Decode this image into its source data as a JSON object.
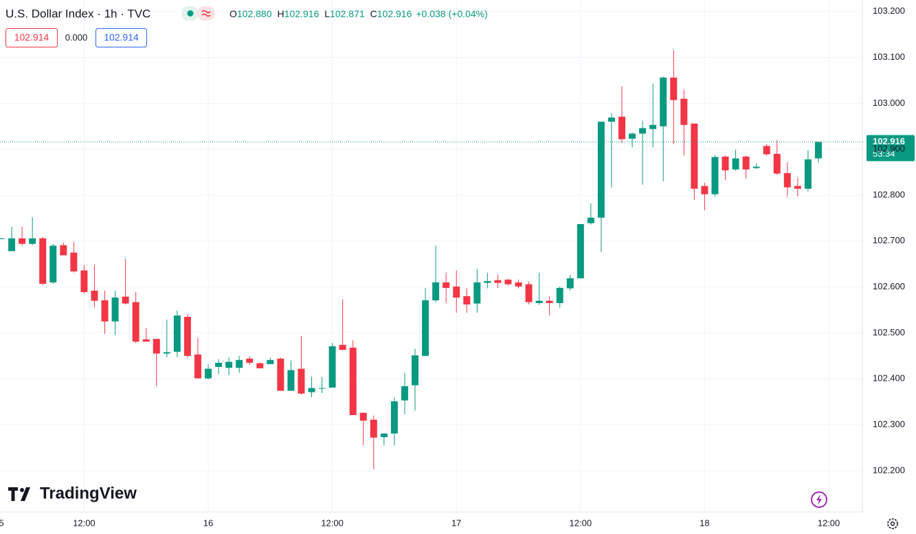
{
  "chart_data": {
    "type": "candlestick",
    "legend": {
      "title": "U.S. Dollar Index · 1h · TVC",
      "open_label": "O",
      "open": "102.880",
      "high_label": "H",
      "high": "102.916",
      "low_label": "L",
      "low": "102.871",
      "close_label": "C",
      "close": "102.916",
      "change": "+0.038 (+0.04%)"
    },
    "badges": [
      "102.914",
      "0.000",
      "102.914"
    ],
    "price_tag": {
      "price": "102.916",
      "countdown": "53:34"
    },
    "watermark": "TradingView",
    "up_color": "#089981",
    "down_color": "#f23645",
    "categories": [
      "5",
      null,
      null,
      null,
      null,
      null,
      null,
      null,
      "12:00",
      null,
      null,
      null,
      null,
      null,
      null,
      null,
      null,
      null,
      null,
      null,
      "16",
      null,
      null,
      null,
      null,
      null,
      null,
      null,
      null,
      null,
      null,
      null,
      "12:00",
      null,
      null,
      null,
      null,
      null,
      null,
      null,
      null,
      null,
      null,
      null,
      "17",
      null,
      null,
      null,
      null,
      null,
      null,
      null,
      null,
      null,
      null,
      null,
      "12:00",
      null,
      null,
      null,
      null,
      null,
      null,
      null,
      null,
      null,
      null,
      null,
      "18",
      null,
      null,
      null,
      null,
      null,
      null,
      null,
      null,
      null,
      null,
      null,
      "12:00"
    ],
    "open": [
      102.706,
      102.678,
      102.706,
      102.694,
      102.706,
      102.61,
      102.691,
      102.675,
      102.636,
      102.592,
      102.571,
      102.525,
      102.579,
      102.567,
      102.486,
      102.487,
      102.455,
      102.459,
      102.535,
      102.453,
      102.401,
      102.426,
      102.424,
      102.424,
      102.444,
      102.434,
      102.432,
      102.444,
      102.374,
      102.422,
      102.371,
      102.379,
      102.381,
      102.474,
      102.468,
      102.326,
      102.311,
      102.273,
      102.281,
      102.353,
      102.386,
      102.45,
      102.571,
      102.61,
      102.601,
      102.58,
      102.564,
      102.609,
      102.615,
      102.616,
      102.61,
      102.606,
      102.565,
      102.57,
      102.565,
      102.597,
      102.619,
      102.739,
      102.751,
      102.96,
      102.971,
      102.923,
      102.934,
      102.944,
      102.95,
      103.056,
      103.01,
      102.956,
      102.82,
      102.802,
      102.884,
      102.856,
      102.884,
      102.859,
      102.907,
      102.89,
      102.848,
      102.82,
      102.814,
      102.88,
      null
    ],
    "high": [
      102.707,
      102.731,
      102.731,
      102.752,
      102.709,
      102.694,
      102.697,
      102.698,
      102.648,
      102.648,
      102.592,
      102.592,
      102.661,
      102.589,
      102.511,
      102.487,
      102.529,
      102.549,
      102.541,
      102.489,
      102.432,
      102.443,
      102.447,
      102.45,
      102.449,
      102.435,
      102.446,
      102.446,
      102.44,
      102.493,
      102.404,
      102.404,
      102.478,
      102.573,
      102.484,
      102.327,
      102.32,
      102.282,
      102.36,
      102.413,
      102.465,
      102.598,
      102.69,
      102.631,
      102.636,
      102.597,
      102.639,
      102.631,
      102.627,
      102.618,
      102.616,
      102.612,
      102.631,
      102.58,
      102.601,
      102.627,
      102.737,
      102.782,
      102.96,
      102.978,
      103.037,
      102.937,
      102.962,
      103.043,
      103.058,
      103.116,
      103.031,
      102.956,
      102.827,
      102.887,
      102.886,
      102.899,
      102.886,
      102.869,
      102.911,
      102.92,
      102.872,
      102.838,
      102.898,
      102.916,
      null
    ],
    "low": [
      102.704,
      102.678,
      102.69,
      102.691,
      102.604,
      102.607,
      102.669,
      102.631,
      102.585,
      102.555,
      102.498,
      102.495,
      102.562,
      102.478,
      102.481,
      102.384,
      102.447,
      102.447,
      102.445,
      102.401,
      102.399,
      102.41,
      102.408,
      102.413,
      102.431,
      102.423,
      102.432,
      102.374,
      102.374,
      102.366,
      102.36,
      102.369,
      102.381,
      102.462,
      102.321,
      102.255,
      102.203,
      102.255,
      102.255,
      102.323,
      102.331,
      102.45,
      102.567,
      102.565,
      102.544,
      102.544,
      102.544,
      102.597,
      102.598,
      102.603,
      102.597,
      102.562,
      102.561,
      102.538,
      102.555,
      102.592,
      102.619,
      102.736,
      102.676,
      102.817,
      102.914,
      102.904,
      102.823,
      102.904,
      102.83,
      102.911,
      102.887,
      102.79,
      102.767,
      102.797,
      102.833,
      102.853,
      102.836,
      102.857,
      102.886,
      102.844,
      102.796,
      102.797,
      102.808,
      102.871,
      null
    ],
    "close": [
      102.706,
      102.706,
      102.694,
      102.706,
      102.607,
      102.69,
      102.669,
      102.634,
      102.589,
      102.57,
      102.525,
      102.577,
      102.564,
      102.481,
      102.481,
      102.455,
      102.458,
      102.538,
      102.45,
      102.401,
      102.422,
      102.435,
      102.437,
      102.441,
      102.435,
      102.423,
      102.441,
      102.374,
      102.419,
      102.368,
      102.38,
      102.38,
      102.471,
      102.463,
      102.321,
      102.309,
      102.272,
      102.281,
      102.351,
      102.384,
      102.451,
      102.571,
      102.61,
      102.598,
      102.577,
      102.562,
      102.61,
      102.613,
      102.609,
      102.606,
      102.601,
      102.567,
      102.57,
      102.565,
      102.598,
      102.619,
      102.737,
      102.751,
      102.96,
      102.969,
      102.922,
      102.934,
      102.946,
      102.953,
      103.056,
      103.007,
      102.953,
      102.814,
      102.802,
      102.883,
      102.854,
      102.88,
      102.856,
      102.862,
      102.889,
      102.847,
      102.817,
      102.814,
      102.878,
      102.916,
      null
    ],
    "ylim": [
      102.11,
      103.225
    ],
    "yticks": [
      {
        "value": 103.2,
        "label": "103.200"
      },
      {
        "value": 103.1,
        "label": "103.100"
      },
      {
        "value": 103.0,
        "label": "103.000"
      },
      {
        "value": 102.9,
        "label": "102.900"
      },
      {
        "value": 102.8,
        "label": "102.800"
      },
      {
        "value": 102.7,
        "label": "102.700"
      },
      {
        "value": 102.6,
        "label": "102.600"
      },
      {
        "value": 102.5,
        "label": "102.500"
      },
      {
        "value": 102.4,
        "label": "102.400"
      },
      {
        "value": 102.3,
        "label": "102.300"
      },
      {
        "value": 102.2,
        "label": "102.200"
      }
    ],
    "grid": true
  }
}
